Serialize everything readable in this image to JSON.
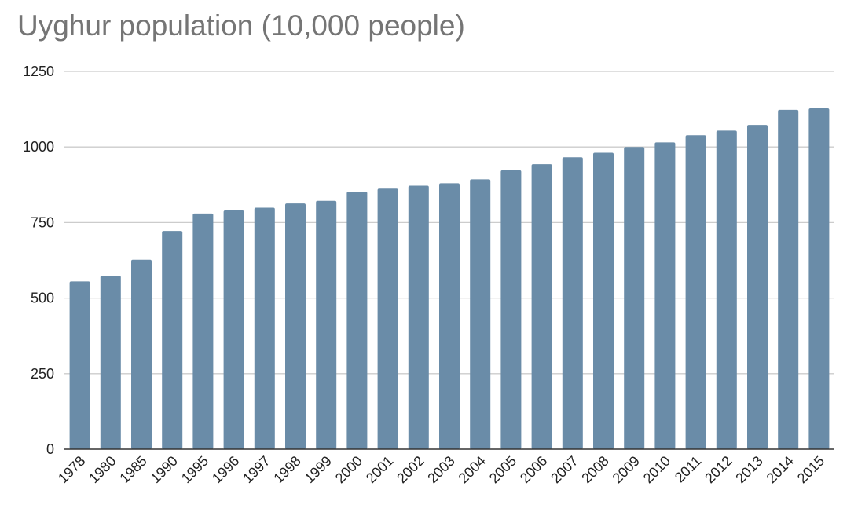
{
  "chart_data": {
    "type": "bar",
    "title": "Uyghur population (10,000 people)",
    "xlabel": "",
    "ylabel": "",
    "categories": [
      "1978",
      "1980",
      "1985",
      "1990",
      "1995",
      "1996",
      "1997",
      "1998",
      "1999",
      "2000",
      "2001",
      "2002",
      "2003",
      "2004",
      "2005",
      "2006",
      "2007",
      "2008",
      "2009",
      "2010",
      "2011",
      "2012",
      "2013",
      "2014",
      "2015"
    ],
    "values": [
      555,
      574,
      627,
      722,
      780,
      790,
      799,
      813,
      822,
      852,
      862,
      872,
      880,
      893,
      923,
      943,
      966,
      981,
      1000,
      1015,
      1039,
      1054,
      1073,
      1123,
      1128
    ],
    "ylim": [
      0,
      1250
    ],
    "yticks": [
      0,
      250,
      500,
      750,
      1000,
      1250
    ],
    "grid": true,
    "bar_color": "#6a8ca8",
    "grid_color": "#cccccc",
    "axis_color": "#333333",
    "title_color": "#757575"
  }
}
